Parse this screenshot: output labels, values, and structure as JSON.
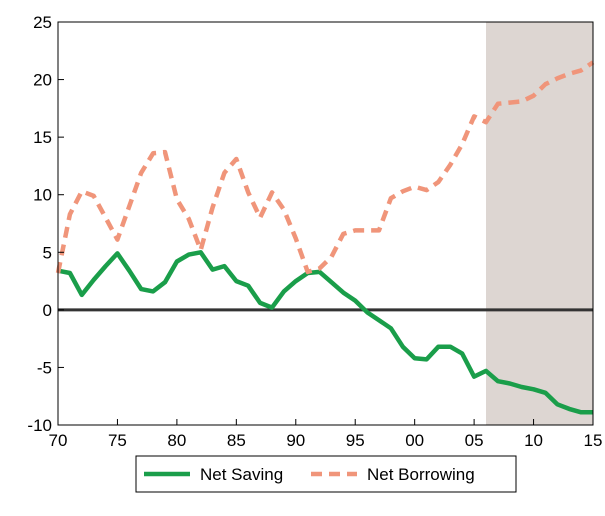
{
  "chart_data": {
    "type": "line",
    "title": "",
    "xlabel": "",
    "ylabel": "",
    "xlim": [
      1970,
      2015
    ],
    "ylim": [
      -10,
      25
    ],
    "x_ticks": [
      {
        "value": 1970,
        "label": "70"
      },
      {
        "value": 1975,
        "label": "75"
      },
      {
        "value": 1980,
        "label": "80"
      },
      {
        "value": 1985,
        "label": "85"
      },
      {
        "value": 1990,
        "label": "90"
      },
      {
        "value": 1995,
        "label": "95"
      },
      {
        "value": 2000,
        "label": "00"
      },
      {
        "value": 2005,
        "label": "05"
      },
      {
        "value": 2010,
        "label": "10"
      },
      {
        "value": 2015,
        "label": "15"
      }
    ],
    "y_ticks": [
      {
        "value": -10,
        "label": "-10"
      },
      {
        "value": -5,
        "label": "-5"
      },
      {
        "value": 0,
        "label": "0"
      },
      {
        "value": 5,
        "label": "5"
      },
      {
        "value": 10,
        "label": "10"
      },
      {
        "value": 15,
        "label": "15"
      },
      {
        "value": 20,
        "label": "20"
      },
      {
        "value": 25,
        "label": "25"
      }
    ],
    "grid": false,
    "zero_line": true,
    "shaded_region": {
      "x_start": 2006,
      "x_end": 2015,
      "color": "#ddd6d2"
    },
    "legend_placement": "bottom-center",
    "series": [
      {
        "name": "Net Saving",
        "color": "#1a9e4a",
        "style": "solid",
        "points": [
          [
            1970,
            3.4
          ],
          [
            1971,
            3.2
          ],
          [
            1972,
            1.3
          ],
          [
            1973,
            2.6
          ],
          [
            1974,
            3.8
          ],
          [
            1975,
            4.9
          ],
          [
            1976,
            3.4
          ],
          [
            1977,
            1.8
          ],
          [
            1978,
            1.6
          ],
          [
            1979,
            2.4
          ],
          [
            1980,
            4.2
          ],
          [
            1981,
            4.8
          ],
          [
            1982,
            5.0
          ],
          [
            1983,
            3.5
          ],
          [
            1984,
            3.8
          ],
          [
            1985,
            2.5
          ],
          [
            1986,
            2.1
          ],
          [
            1987,
            0.6
          ],
          [
            1988,
            0.2
          ],
          [
            1989,
            1.6
          ],
          [
            1990,
            2.5
          ],
          [
            1991,
            3.2
          ],
          [
            1992,
            3.3
          ],
          [
            1993,
            2.4
          ],
          [
            1994,
            1.5
          ],
          [
            1995,
            0.8
          ],
          [
            1996,
            -0.2
          ],
          [
            1997,
            -0.9
          ],
          [
            1998,
            -1.6
          ],
          [
            1999,
            -3.2
          ],
          [
            2000,
            -4.2
          ],
          [
            2001,
            -4.3
          ],
          [
            2002,
            -3.2
          ],
          [
            2003,
            -3.2
          ],
          [
            2004,
            -3.8
          ],
          [
            2005,
            -5.8
          ],
          [
            2006,
            -5.3
          ],
          [
            2007,
            -6.2
          ],
          [
            2008,
            -6.4
          ],
          [
            2009,
            -6.7
          ],
          [
            2010,
            -6.9
          ],
          [
            2011,
            -7.2
          ],
          [
            2012,
            -8.2
          ],
          [
            2013,
            -8.6
          ],
          [
            2014,
            -8.9
          ],
          [
            2015,
            -8.9
          ]
        ]
      },
      {
        "name": "Net Borrowing",
        "color": "#f0957a",
        "style": "dashed",
        "points": [
          [
            1970,
            3.2
          ],
          [
            1971,
            8.3
          ],
          [
            1972,
            10.3
          ],
          [
            1973,
            9.9
          ],
          [
            1974,
            8.0
          ],
          [
            1975,
            6.1
          ],
          [
            1976,
            9.0
          ],
          [
            1977,
            11.9
          ],
          [
            1978,
            13.6
          ],
          [
            1979,
            13.7
          ],
          [
            1980,
            9.6
          ],
          [
            1981,
            7.9
          ],
          [
            1982,
            5.2
          ],
          [
            1983,
            8.9
          ],
          [
            1984,
            11.9
          ],
          [
            1985,
            13.1
          ],
          [
            1986,
            10.2
          ],
          [
            1987,
            8.0
          ],
          [
            1988,
            10.2
          ],
          [
            1989,
            8.7
          ],
          [
            1990,
            6.2
          ],
          [
            1991,
            3.3
          ],
          [
            1992,
            3.6
          ],
          [
            1993,
            4.6
          ],
          [
            1994,
            6.6
          ],
          [
            1995,
            6.9
          ],
          [
            1996,
            6.9
          ],
          [
            1997,
            6.9
          ],
          [
            1998,
            9.7
          ],
          [
            1999,
            10.3
          ],
          [
            2000,
            10.7
          ],
          [
            2001,
            10.4
          ],
          [
            2002,
            11.1
          ],
          [
            2003,
            12.6
          ],
          [
            2004,
            14.4
          ],
          [
            2005,
            16.8
          ],
          [
            2006,
            16.3
          ],
          [
            2007,
            17.9
          ],
          [
            2008,
            18.0
          ],
          [
            2009,
            18.1
          ],
          [
            2010,
            18.6
          ],
          [
            2011,
            19.6
          ],
          [
            2012,
            20.1
          ],
          [
            2013,
            20.5
          ],
          [
            2014,
            20.8
          ],
          [
            2015,
            21.5
          ]
        ]
      }
    ]
  }
}
